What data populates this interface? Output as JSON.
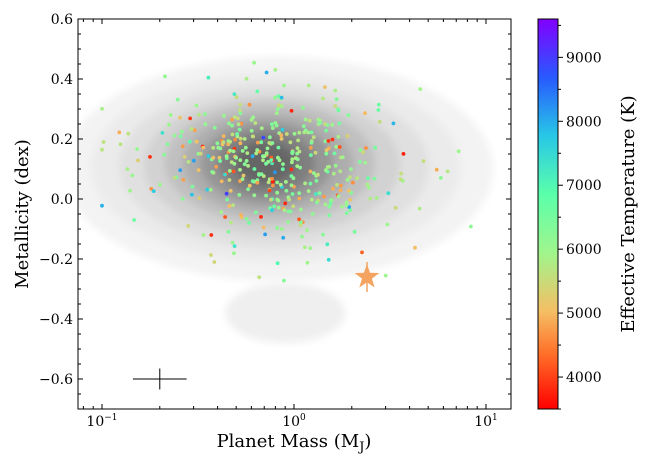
{
  "chart_data": {
    "type": "scatter",
    "xlabel": "Planet Mass (M",
    "xlabel_sub": "J",
    "xlabel_close": ")",
    "ylabel": "Metallicity (dex)",
    "colorbar_label": "Effective Temperature (K)",
    "xscale": "log",
    "xlim": [
      0.075,
      13.5
    ],
    "ylim": [
      -0.7,
      0.6
    ],
    "x_ticks": [
      {
        "value": 0.1,
        "base": "10",
        "exp": "−1"
      },
      {
        "value": 1,
        "base": "10",
        "exp": "0"
      },
      {
        "value": 10,
        "base": "10",
        "exp": "1"
      }
    ],
    "y_ticks": [
      {
        "value": 0.6,
        "label": "0.6"
      },
      {
        "value": 0.4,
        "label": "0.4"
      },
      {
        "value": 0.2,
        "label": "0.2"
      },
      {
        "value": 0.0,
        "label": "0.0"
      },
      {
        "value": -0.2,
        "label": "−0.2"
      },
      {
        "value": -0.4,
        "label": "−0.4"
      },
      {
        "value": -0.6,
        "label": "−0.6"
      }
    ],
    "colorbar": {
      "vmin": 3500,
      "vmax": 9600,
      "ticks": [
        {
          "value": 4000,
          "label": "4000"
        },
        {
          "value": 5000,
          "label": "5000"
        },
        {
          "value": 6000,
          "label": "6000"
        },
        {
          "value": 7000,
          "label": "7000"
        },
        {
          "value": 8000,
          "label": "8000"
        },
        {
          "value": 9000,
          "label": "9000"
        }
      ]
    },
    "density_peak": {
      "x": 0.75,
      "y": 0.12
    },
    "highlight_star": {
      "x": 2.4,
      "y": -0.26,
      "yerr": 0.05,
      "color": "#f4a460"
    },
    "typical_error": {
      "x": 0.2,
      "y": -0.6,
      "x_factor": 1.38,
      "yerr": 0.035
    },
    "points": []
  }
}
